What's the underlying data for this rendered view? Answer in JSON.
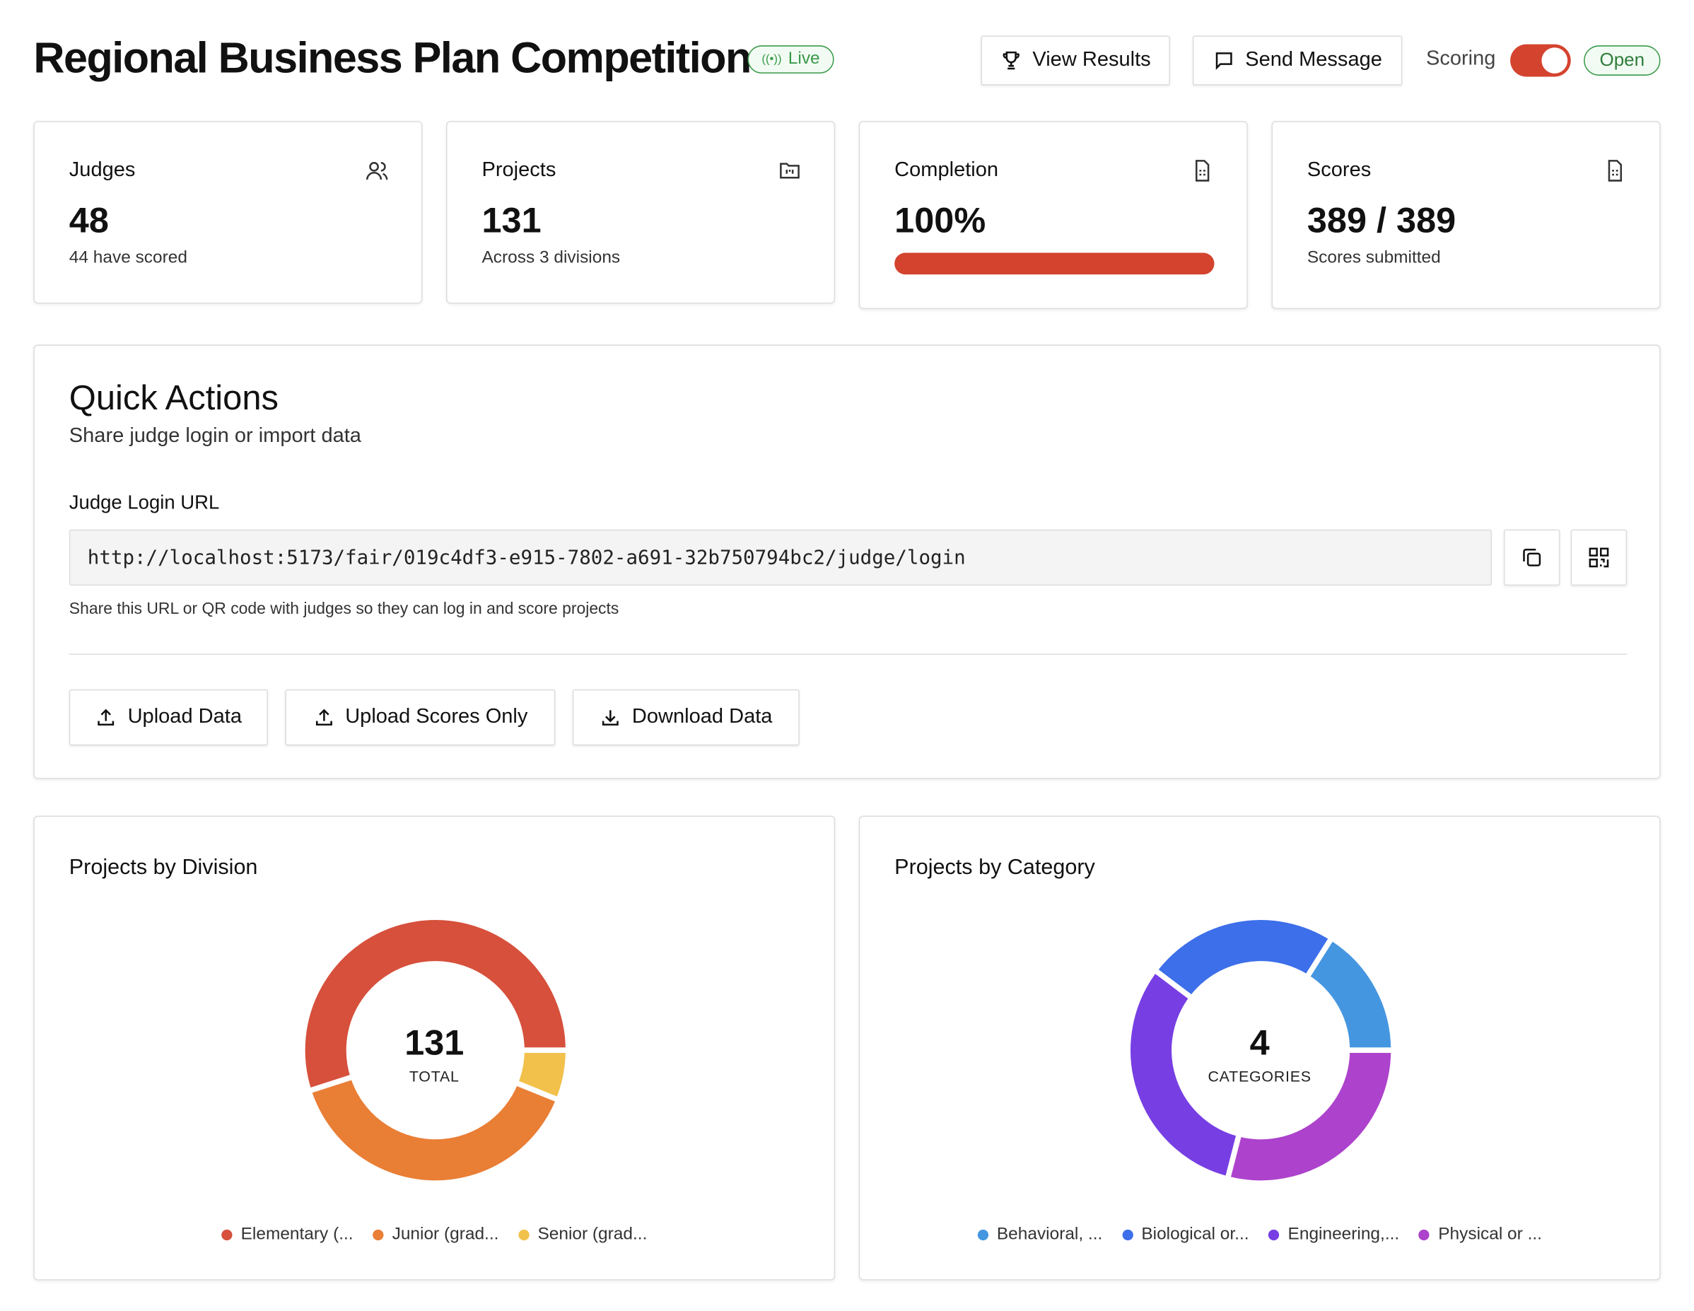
{
  "header": {
    "title": "Regional Business Plan Competition",
    "live_badge": "Live",
    "view_results": "View Results",
    "send_message": "Send Message",
    "scoring_label": "Scoring",
    "scoring_on": true,
    "status_badge": "Open"
  },
  "stats": [
    {
      "label": "Judges",
      "value": "48",
      "sub": "44 have scored",
      "icon": "users-icon"
    },
    {
      "label": "Projects",
      "value": "131",
      "sub": "Across 3 divisions",
      "icon": "folder-chart-icon"
    },
    {
      "label": "Completion",
      "value": "100%",
      "progress": 100,
      "icon": "document-icon"
    },
    {
      "label": "Scores",
      "value": "389 / 389",
      "sub": "Scores submitted",
      "icon": "document-icon"
    }
  ],
  "quick_actions": {
    "title": "Quick Actions",
    "subtitle": "Share judge login or import data",
    "url_label": "Judge Login URL",
    "url": "http://localhost:5173/fair/019c4df3-e915-7802-a691-32b750794bc2/judge/login",
    "hint": "Share this URL or QR code with judges so they can log in and score projects",
    "upload_data": "Upload Data",
    "upload_scores": "Upload Scores Only",
    "download_data": "Download Data"
  },
  "chart_data": [
    {
      "type": "pie",
      "title": "Projects by Division",
      "center_value": "131",
      "center_label": "TOTAL",
      "categories": [
        "Elementary (...",
        "Junior (grad...",
        "Senior (grad..."
      ],
      "values": [
        72,
        51,
        8
      ],
      "colors": [
        "#d6503c",
        "#e97e35",
        "#f1c14b"
      ]
    },
    {
      "type": "pie",
      "title": "Projects by Category",
      "center_value": "4",
      "center_label": "CATEGORIES",
      "categories": [
        "Behavioral, ...",
        "Biological or...",
        "Engineering,...",
        "Physical or ..."
      ],
      "values": [
        21,
        31,
        41,
        38
      ],
      "colors": [
        "#4596e0",
        "#3d6fea",
        "#773fe3",
        "#ad42cc"
      ]
    }
  ]
}
